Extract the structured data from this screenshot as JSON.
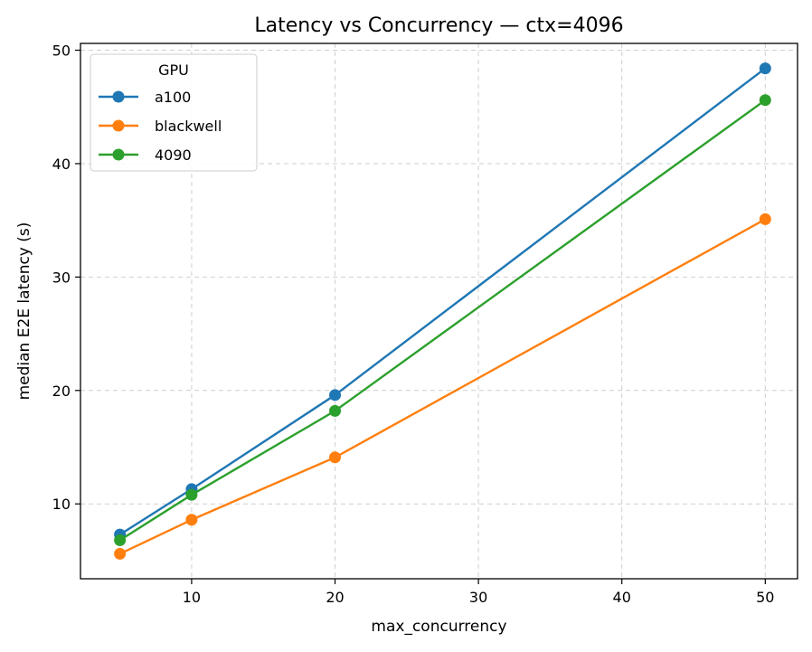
{
  "chart_data": {
    "type": "line",
    "title": "Latency vs Concurrency — ctx=4096",
    "xlabel": "max_concurrency",
    "ylabel": "median E2E latency (s)",
    "xlim": [
      2.25,
      52.25
    ],
    "ylim": [
      3.4,
      50.6
    ],
    "xticks": [
      10,
      20,
      30,
      40,
      50
    ],
    "yticks": [
      10,
      20,
      30,
      40,
      50
    ],
    "grid": true,
    "legend": {
      "title": "GPU",
      "position": "top-left"
    },
    "x": [
      5,
      10,
      20,
      50
    ],
    "series": [
      {
        "name": "a100",
        "color": "#1f77b4",
        "values": [
          7.3,
          11.3,
          19.6,
          48.4
        ]
      },
      {
        "name": "blackwell",
        "color": "#ff7f0e",
        "values": [
          5.6,
          8.6,
          14.1,
          35.1
        ]
      },
      {
        "name": "4090",
        "color": "#2ca02c",
        "values": [
          6.8,
          10.8,
          18.2,
          45.6
        ]
      }
    ]
  }
}
